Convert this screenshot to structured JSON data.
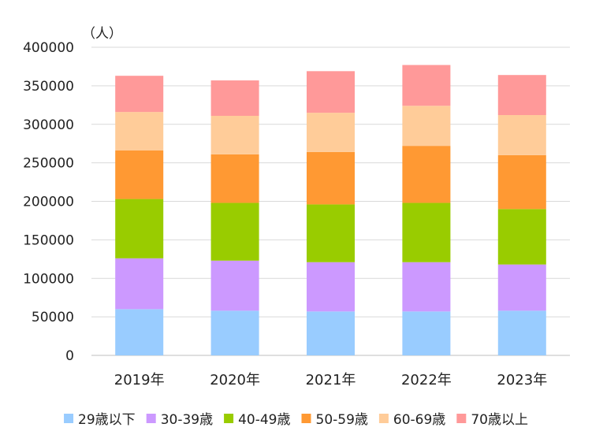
{
  "chart_data": {
    "type": "bar",
    "stacked": true,
    "unit_label": "（人）",
    "categories": [
      "2019年",
      "2020年",
      "2021年",
      "2022年",
      "2023年"
    ],
    "ylim": [
      0,
      400000
    ],
    "yticks": [
      0,
      50000,
      100000,
      150000,
      200000,
      250000,
      300000,
      350000,
      400000
    ],
    "ytick_labels": [
      "0",
      "50000",
      "100000",
      "150000",
      "200000",
      "250000",
      "300000",
      "350000",
      "400000"
    ],
    "grid": true,
    "legend_position": "bottom",
    "series": [
      {
        "name": "29歳以下",
        "color": "#99CCFF",
        "values": [
          60000,
          58000,
          57000,
          57000,
          58000
        ]
      },
      {
        "name": "30-39歳",
        "color": "#CC99FF",
        "values": [
          66000,
          65000,
          64000,
          64000,
          60000
        ]
      },
      {
        "name": "40-49歳",
        "color": "#99CC00",
        "values": [
          77000,
          75000,
          75000,
          77000,
          72000
        ]
      },
      {
        "name": "50-59歳",
        "color": "#FF9933",
        "values": [
          63000,
          63000,
          68000,
          74000,
          70000
        ]
      },
      {
        "name": "60-69歳",
        "color": "#FFCC99",
        "values": [
          50000,
          50000,
          51000,
          52000,
          52000
        ]
      },
      {
        "name": "70歳以上",
        "color": "#FF9999",
        "values": [
          47000,
          46000,
          54000,
          53000,
          52000
        ]
      }
    ]
  }
}
